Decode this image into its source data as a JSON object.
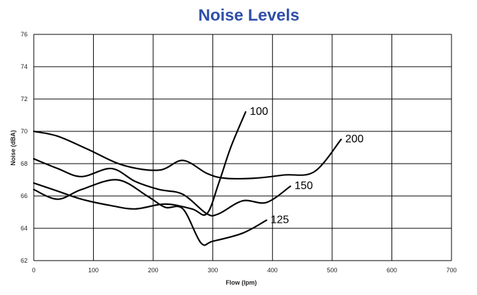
{
  "chart_data": {
    "type": "line",
    "title": "Noise Levels",
    "xlabel": "Flow (lpm)",
    "ylabel": "Noise (dBA)",
    "xlim": [
      0,
      700
    ],
    "ylim": [
      62,
      76
    ],
    "x_ticks": [
      "0",
      "100",
      "200",
      "300",
      "400",
      "500",
      "600",
      "700"
    ],
    "y_ticks": [
      "62",
      "64",
      "66",
      "68",
      "70",
      "72",
      "74",
      "76"
    ],
    "grid": true,
    "series": [
      {
        "name": "100",
        "x": [
          0,
          40,
          80,
          130,
          170,
          220,
          265,
          290,
          310,
          330,
          355
        ],
        "y": [
          66.8,
          66.3,
          65.8,
          65.4,
          65.2,
          65.5,
          65.2,
          64.9,
          66.8,
          69.0,
          71.2
        ]
      },
      {
        "name": "125",
        "x": [
          0,
          40,
          80,
          140,
          190,
          220,
          250,
          280,
          300,
          350,
          390
        ],
        "y": [
          66.4,
          65.8,
          66.4,
          67.0,
          66.0,
          65.3,
          65.2,
          63.1,
          63.2,
          63.7,
          64.5
        ]
      },
      {
        "name": "150",
        "x": [
          0,
          40,
          80,
          130,
          170,
          210,
          250,
          290,
          310,
          350,
          390,
          430
        ],
        "y": [
          68.3,
          67.7,
          67.2,
          67.7,
          66.9,
          66.4,
          66.1,
          64.9,
          64.9,
          65.7,
          65.6,
          66.6
        ]
      },
      {
        "name": "200",
        "x": [
          0,
          40,
          90,
          150,
          210,
          250,
          290,
          320,
          370,
          420,
          470,
          515
        ],
        "y": [
          70.0,
          69.7,
          68.9,
          67.9,
          67.6,
          68.2,
          67.4,
          67.1,
          67.1,
          67.3,
          67.5,
          69.5
        ]
      }
    ]
  }
}
